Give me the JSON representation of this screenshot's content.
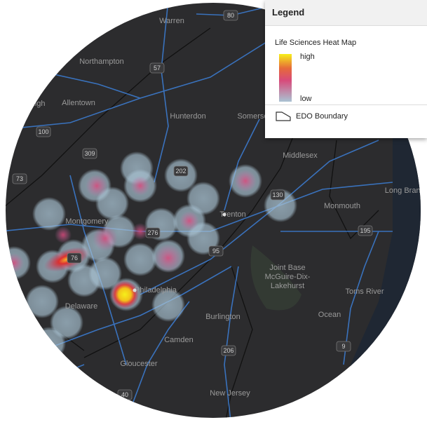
{
  "map": {
    "places": [
      {
        "label": "Warren"
      },
      {
        "label": "Northampton"
      },
      {
        "label": "Allentown"
      },
      {
        "label": "Lehigh"
      },
      {
        "label": "Hunterdon"
      },
      {
        "label": "Somerset"
      },
      {
        "label": "Middlesex"
      },
      {
        "label": "Long Branch"
      },
      {
        "label": "Monmouth"
      },
      {
        "label": "Montgomery"
      },
      {
        "label": "Trenton"
      },
      {
        "label": "Philadelphia"
      },
      {
        "label": "Joint Base"
      },
      {
        "label": "McGuire-Dix-"
      },
      {
        "label": "Lakehurst"
      },
      {
        "label": "Toms River"
      },
      {
        "label": "Ocean"
      },
      {
        "label": "Burlington"
      },
      {
        "label": "Camden"
      },
      {
        "label": "Delaware"
      },
      {
        "label": "Gloucester"
      },
      {
        "label": "New Jersey"
      }
    ],
    "highways": [
      "80",
      "57",
      "100",
      "309",
      "73",
      "202",
      "276",
      "95",
      "195",
      "206",
      "9",
      "40",
      "130",
      "76"
    ]
  },
  "legend": {
    "title": "Legend",
    "layer": "Life Sciences Heat Map",
    "high": "high",
    "low": "low",
    "boundary": "EDO Boundary"
  }
}
